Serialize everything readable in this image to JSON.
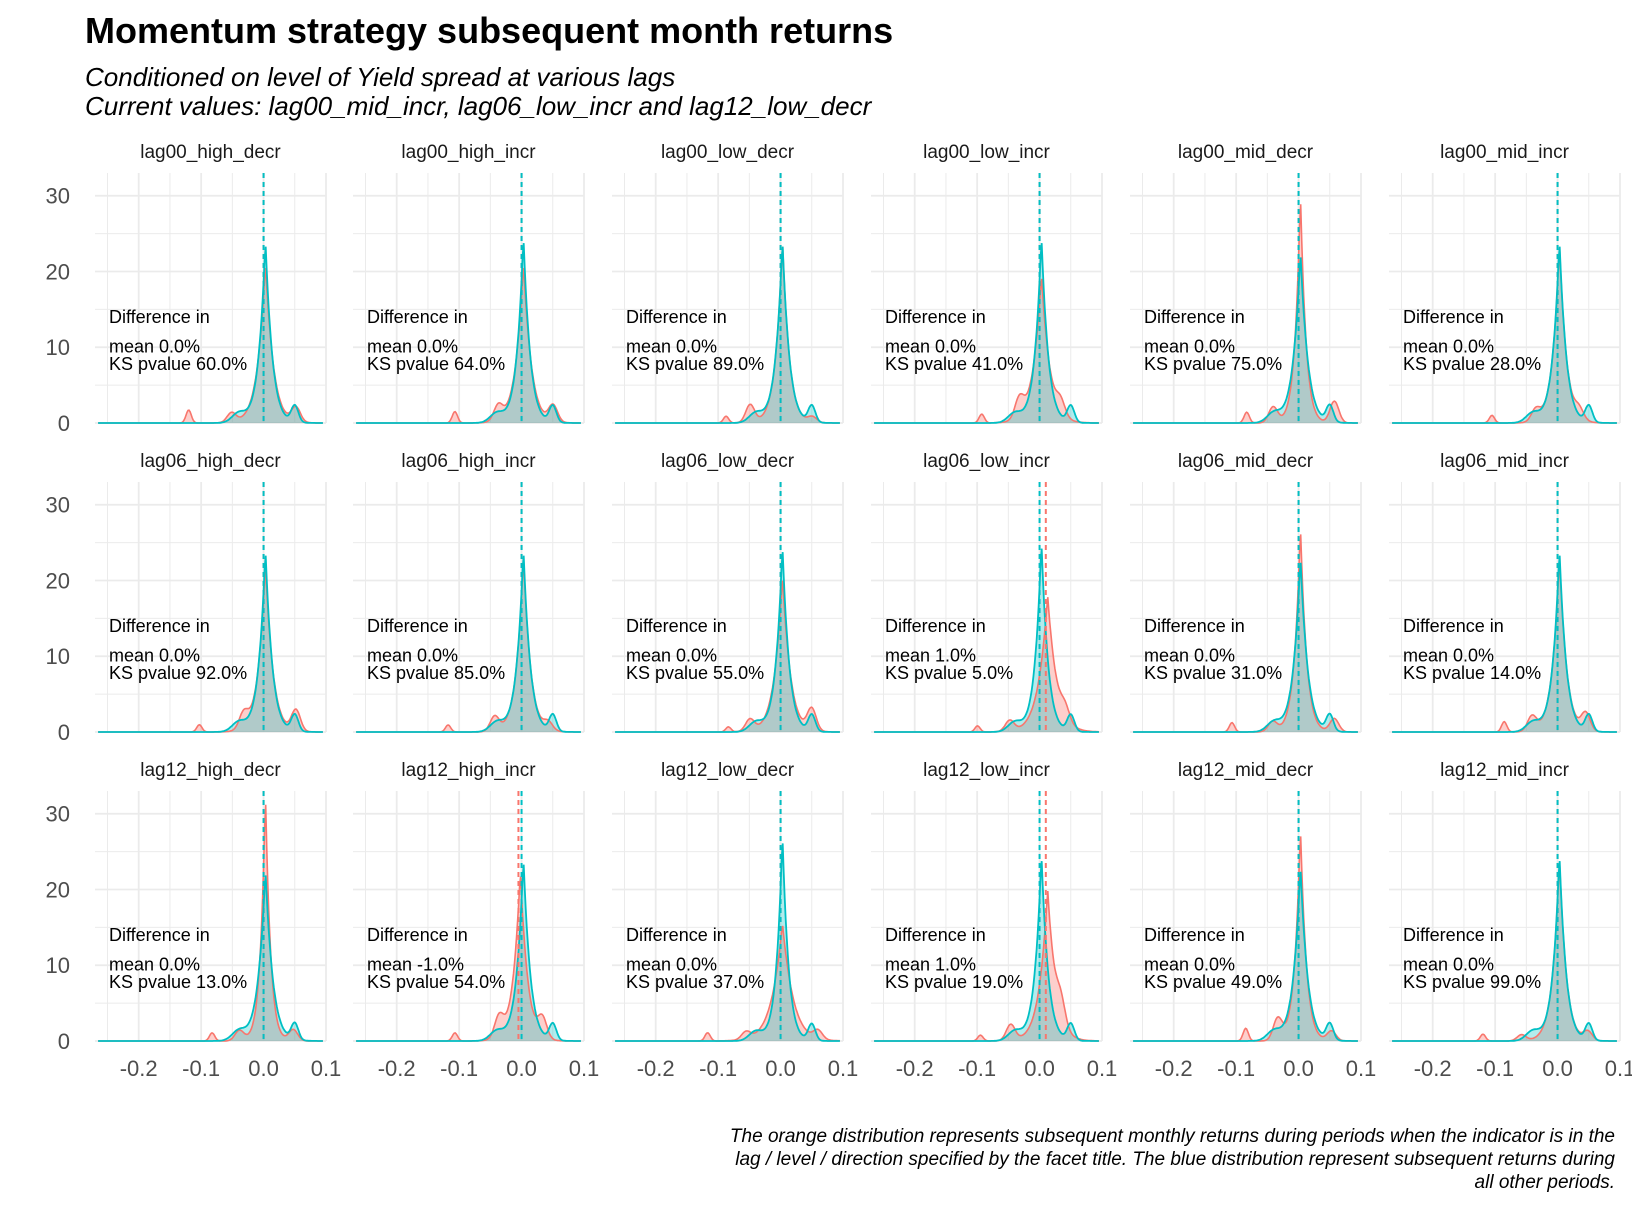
{
  "title": "Momentum strategy subsequent month returns",
  "subtitle_line1": "Conditioned on level of Yield spread at various lags",
  "subtitle_line2": "Current values: lag00_mid_incr, lag06_low_incr and lag12_low_decr",
  "caption": "The orange distribution represents subsequent monthly returns during periods when the indicator is in the lag / level / direction specified by the facet title.  The blue distribution represent subsequent returns during all other periods.",
  "colors": {
    "orange": "#F8766D",
    "blue": "#00BFC4",
    "grid": "#EBEBEB"
  },
  "chart_data": {
    "type": "area",
    "description_type": "faceted density plot",
    "xlim": [
      -0.27,
      0.1
    ],
    "ylim": [
      0,
      33
    ],
    "x_ticks": [
      -0.2,
      -0.1,
      0.0,
      0.1
    ],
    "x_tick_labels": [
      "-0.2",
      "-0.1",
      "0.0",
      "0.1"
    ],
    "y_ticks": [
      0,
      10,
      20,
      30
    ],
    "y_tick_labels": [
      "0",
      "10",
      "20",
      "30"
    ],
    "grid": true,
    "series_colors": {
      "orange": "#F8766D",
      "blue": "#00BFC4"
    },
    "annotation_line1": "Difference in",
    "panels": [
      {
        "title": "lag00_high_decr",
        "mean_line": "mean 0.0%",
        "ks_line": "KS pvalue 60.0%",
        "orange_peak": 21,
        "blue_peak": 24,
        "orange_mean_x": 0.0,
        "blue_mean_x": 0.0
      },
      {
        "title": "lag00_high_incr",
        "mean_line": "mean 0.0%",
        "ks_line": "KS pvalue 64.0%",
        "orange_peak": 21,
        "blue_peak": 24.5,
        "orange_mean_x": 0.0,
        "blue_mean_x": 0.0
      },
      {
        "title": "lag00_low_decr",
        "mean_line": "mean 0.0%",
        "ks_line": "KS pvalue 89.0%",
        "orange_peak": 24,
        "blue_peak": 24,
        "orange_mean_x": 0.0,
        "blue_mean_x": 0.0
      },
      {
        "title": "lag00_low_incr",
        "mean_line": "mean 0.0%",
        "ks_line": "KS pvalue 41.0%",
        "orange_peak": 19.5,
        "blue_peak": 24.5,
        "orange_mean_x": 0.0,
        "blue_mean_x": 0.0
      },
      {
        "title": "lag00_mid_decr",
        "mean_line": "mean 0.0%",
        "ks_line": "KS pvalue 75.0%",
        "orange_peak": 30,
        "blue_peak": 22.5,
        "orange_mean_x": 0.0,
        "blue_mean_x": 0.0
      },
      {
        "title": "lag00_mid_incr",
        "mean_line": "mean 0.0%",
        "ks_line": "KS pvalue 28.0%",
        "orange_peak": 23.5,
        "blue_peak": 24,
        "orange_mean_x": 0.0,
        "blue_mean_x": 0.0
      },
      {
        "title": "lag06_high_decr",
        "mean_line": "mean 0.0%",
        "ks_line": "KS pvalue 92.0%",
        "orange_peak": 22,
        "blue_peak": 24,
        "orange_mean_x": 0.0,
        "blue_mean_x": 0.0
      },
      {
        "title": "lag06_high_incr",
        "mean_line": "mean 0.0%",
        "ks_line": "KS pvalue 85.0%",
        "orange_peak": 23,
        "blue_peak": 24,
        "orange_mean_x": 0.0,
        "blue_mean_x": 0.0
      },
      {
        "title": "lag06_low_decr",
        "mean_line": "mean 0.0%",
        "ks_line": "KS pvalue 55.0%",
        "orange_peak": 20.5,
        "blue_peak": 24.5,
        "orange_mean_x": 0.0,
        "blue_mean_x": 0.0
      },
      {
        "title": "lag06_low_incr",
        "mean_line": "mean 1.0%",
        "ks_line": "KS pvalue 5.0%",
        "orange_peak": 18,
        "blue_peak": 25,
        "orange_mean_x": 0.01,
        "blue_mean_x": 0.0
      },
      {
        "title": "lag06_mid_decr",
        "mean_line": "mean 0.0%",
        "ks_line": "KS pvalue 31.0%",
        "orange_peak": 27,
        "blue_peak": 23,
        "orange_mean_x": 0.0,
        "blue_mean_x": 0.0
      },
      {
        "title": "lag06_mid_incr",
        "mean_line": "mean 0.0%",
        "ks_line": "KS pvalue 14.0%",
        "orange_peak": 23,
        "blue_peak": 24,
        "orange_mean_x": 0.0,
        "blue_mean_x": 0.0
      },
      {
        "title": "lag12_high_decr",
        "mean_line": "mean 0.0%",
        "ks_line": "KS pvalue 13.0%",
        "orange_peak": 32.5,
        "blue_peak": 22.5,
        "orange_mean_x": 0.0,
        "blue_mean_x": 0.0
      },
      {
        "title": "lag12_high_incr",
        "mean_line": "mean -1.0%",
        "ks_line": "KS pvalue 54.0%",
        "orange_peak": 22.5,
        "blue_peak": 24,
        "orange_mean_x": -0.005,
        "blue_mean_x": 0.0
      },
      {
        "title": "lag12_low_decr",
        "mean_line": "mean 0.0%",
        "ks_line": "KS pvalue 37.0%",
        "orange_peak": 15.5,
        "blue_peak": 27,
        "orange_mean_x": 0.0,
        "blue_mean_x": 0.0
      },
      {
        "title": "lag12_low_incr",
        "mean_line": "mean 1.0%",
        "ks_line": "KS pvalue 19.0%",
        "orange_peak": 20,
        "blue_peak": 24.5,
        "orange_mean_x": 0.01,
        "blue_mean_x": 0.0
      },
      {
        "title": "lag12_mid_decr",
        "mean_line": "mean 0.0%",
        "ks_line": "KS pvalue 49.0%",
        "orange_peak": 28,
        "blue_peak": 23,
        "orange_mean_x": 0.0,
        "blue_mean_x": 0.0
      },
      {
        "title": "lag12_mid_incr",
        "mean_line": "mean 0.0%",
        "ks_line": "KS pvalue 99.0%",
        "orange_peak": 24,
        "blue_peak": 24.5,
        "orange_mean_x": 0.0,
        "blue_mean_x": 0.0
      }
    ]
  }
}
